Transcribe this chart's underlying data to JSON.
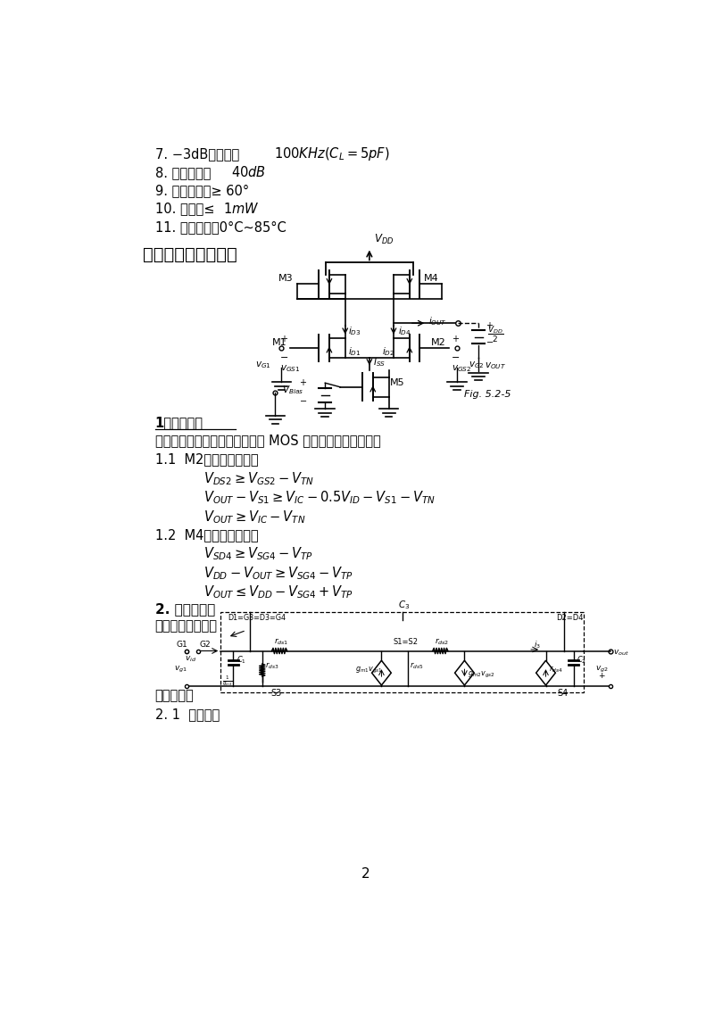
{
  "bg_color": "#ffffff",
  "text_color": "#000000",
  "page_width": 8.0,
  "page_height": 11.32
}
